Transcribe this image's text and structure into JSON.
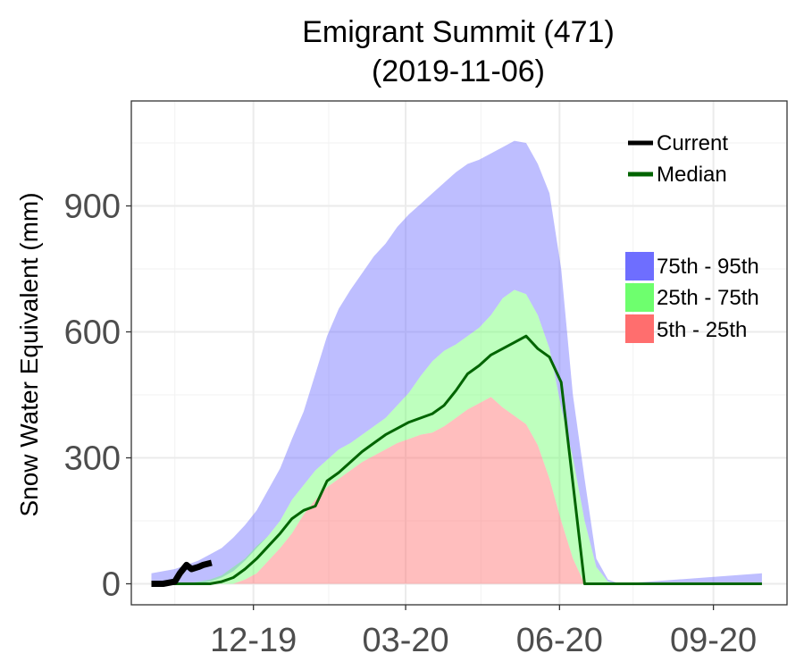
{
  "chart_data": {
    "type": "area",
    "title": "Emigrant Summit (471)",
    "subtitle": "(2019-11-06)",
    "ylabel": "Snow Water Equivalent (mm)",
    "xlabel": "",
    "x_tick_labels": [
      "12-19",
      "03-20",
      "06-20",
      "09-20"
    ],
    "y_ticks": [
      0,
      300,
      600,
      900
    ],
    "ylim": [
      -50,
      1150
    ],
    "x_dates": [
      "2019-10-01",
      "2019-10-08",
      "2019-10-15",
      "2019-10-22",
      "2019-10-29",
      "2019-11-05",
      "2019-11-12",
      "2019-11-19",
      "2019-11-26",
      "2019-12-03",
      "2019-12-10",
      "2019-12-17",
      "2019-12-24",
      "2019-12-31",
      "2020-01-07",
      "2020-01-14",
      "2020-01-21",
      "2020-01-28",
      "2020-02-04",
      "2020-02-11",
      "2020-02-18",
      "2020-02-25",
      "2020-03-03",
      "2020-03-10",
      "2020-03-17",
      "2020-03-24",
      "2020-03-31",
      "2020-04-07",
      "2020-04-14",
      "2020-04-21",
      "2020-04-28",
      "2020-05-05",
      "2020-05-12",
      "2020-05-19",
      "2020-05-26",
      "2020-06-02",
      "2020-06-09",
      "2020-06-16",
      "2020-06-23",
      "2020-06-30",
      "2020-07-07",
      "2020-09-30"
    ],
    "series": [
      {
        "name": "75th - 95th",
        "color": "#6e6eff",
        "low": [
          0,
          0,
          0,
          0,
          0,
          5,
          15,
          30,
          55,
          85,
          115,
          150,
          200,
          235,
          270,
          295,
          320,
          335,
          355,
          375,
          395,
          425,
          455,
          495,
          530,
          555,
          570,
          590,
          610,
          640,
          680,
          700,
          690,
          640,
          560,
          420,
          300,
          150,
          40,
          5,
          0,
          0
        ],
        "high": [
          25,
          30,
          35,
          45,
          55,
          70,
          85,
          110,
          140,
          175,
          225,
          275,
          345,
          410,
          500,
          590,
          655,
          700,
          740,
          780,
          810,
          850,
          880,
          905,
          930,
          955,
          980,
          1000,
          1010,
          1025,
          1040,
          1055,
          1050,
          1000,
          930,
          750,
          450,
          250,
          60,
          10,
          0,
          25
        ]
      },
      {
        "name": "25th - 75th",
        "color": "#6eff6e",
        "low": [
          0,
          0,
          0,
          0,
          0,
          0,
          0,
          0,
          10,
          25,
          55,
          85,
          120,
          165,
          200,
          230,
          250,
          270,
          290,
          305,
          320,
          335,
          345,
          355,
          360,
          375,
          395,
          415,
          430,
          445,
          420,
          400,
          380,
          330,
          250,
          150,
          60,
          0,
          0,
          0,
          0,
          0
        ],
        "high": [
          0,
          0,
          0,
          0,
          5,
          10,
          20,
          40,
          60,
          90,
          115,
          150,
          200,
          235,
          270,
          295,
          320,
          335,
          355,
          375,
          395,
          425,
          455,
          495,
          530,
          555,
          570,
          590,
          610,
          640,
          680,
          700,
          690,
          640,
          560,
          420,
          300,
          150,
          40,
          5,
          0,
          0
        ]
      },
      {
        "name": "5th - 25th",
        "color": "#ff6e6e",
        "low": [
          0,
          0,
          0,
          0,
          0,
          0,
          0,
          0,
          0,
          0,
          0,
          0,
          0,
          0,
          0,
          0,
          0,
          0,
          0,
          0,
          0,
          0,
          0,
          0,
          0,
          0,
          0,
          0,
          0,
          0,
          0,
          0,
          0,
          0,
          0,
          0,
          0,
          0,
          0,
          0,
          0,
          0
        ],
        "high": [
          0,
          0,
          0,
          0,
          0,
          0,
          0,
          0,
          10,
          25,
          55,
          85,
          120,
          165,
          200,
          230,
          250,
          270,
          290,
          305,
          320,
          335,
          345,
          355,
          360,
          375,
          395,
          415,
          430,
          445,
          420,
          400,
          380,
          330,
          250,
          150,
          60,
          0,
          0,
          0,
          0,
          0
        ]
      },
      {
        "name": "Median",
        "color": "#006400",
        "values": [
          0,
          0,
          0,
          0,
          0,
          0,
          5,
          15,
          35,
          60,
          90,
          120,
          155,
          175,
          185,
          245,
          265,
          290,
          315,
          335,
          355,
          370,
          385,
          395,
          405,
          425,
          460,
          500,
          520,
          545,
          560,
          575,
          590,
          560,
          540,
          480,
          240,
          0,
          0,
          0,
          0,
          0
        ]
      },
      {
        "name": "Current",
        "color": "#000000",
        "x_dates": [
          "2019-10-01",
          "2019-10-08",
          "2019-10-15",
          "2019-10-18",
          "2019-10-22",
          "2019-10-25",
          "2019-10-29",
          "2019-11-01",
          "2019-11-06"
        ],
        "values": [
          0,
          0,
          5,
          25,
          45,
          35,
          40,
          45,
          50
        ]
      }
    ],
    "legend": {
      "lines": [
        "Current",
        "Median"
      ],
      "bands": [
        "75th - 95th",
        "25th - 75th",
        "5th - 25th"
      ],
      "placement": "top-right"
    },
    "grid": true
  }
}
